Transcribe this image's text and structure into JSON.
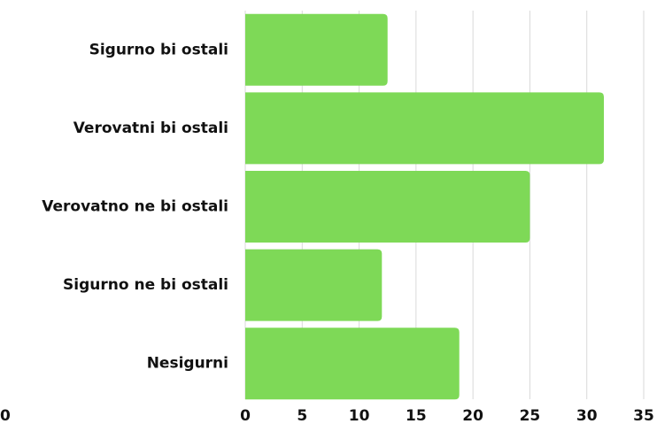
{
  "chart_data": {
    "type": "barh",
    "categories": [
      "Sigurno bi ostali",
      "Verovatni bi ostali",
      "Verovatno ne bi ostali",
      "Sigurno ne bi ostali",
      "Nesigurni"
    ],
    "values": [
      12.5,
      31.5,
      25,
      12,
      18.8
    ],
    "color": "#7ed957",
    "xlim": [
      0,
      35
    ],
    "xticks": [
      0,
      5,
      10,
      15,
      20,
      25,
      30,
      35
    ],
    "grid": true,
    "annotations": [
      "0"
    ]
  }
}
